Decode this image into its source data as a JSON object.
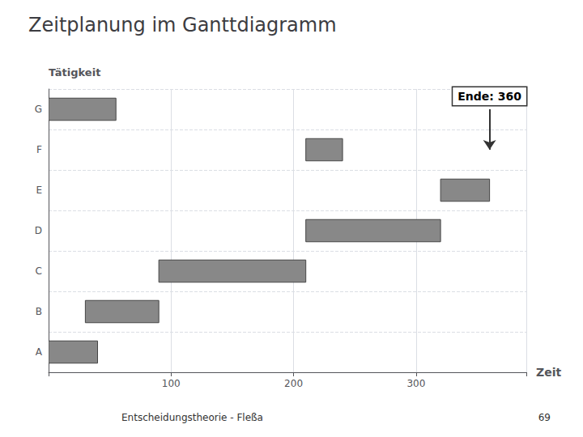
{
  "chart_data": {
    "type": "gantt",
    "title": "Zeitplanung im Ganttdiagramm",
    "orientation": "horizontal",
    "categories": [
      "A",
      "B",
      "C",
      "D",
      "E",
      "F",
      "G"
    ],
    "starts": [
      0,
      30,
      90,
      210,
      320,
      210,
      0
    ],
    "values": [
      40,
      60,
      120,
      110,
      40,
      30,
      55
    ],
    "color": "#888888",
    "xlabel": "Zeit",
    "ylabel": "Tätigkeit",
    "xlim": [
      0,
      390
    ],
    "xticks": [
      100,
      200,
      300
    ],
    "grid": true,
    "annotations": [
      {
        "text": "Ende: 360",
        "x": 360,
        "y": "F"
      }
    ],
    "footer": [
      "Entscheidungstheorie - Fleßa",
      "69"
    ]
  }
}
